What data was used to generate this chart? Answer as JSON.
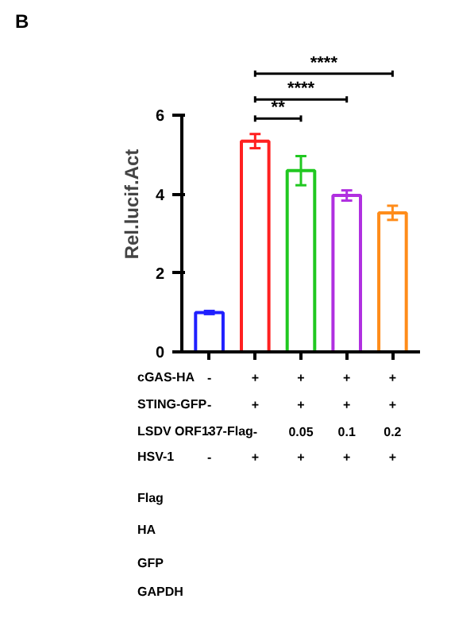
{
  "chart_data": {
    "type": "bar",
    "categories": [
      null,
      null,
      null,
      null,
      null
    ],
    "tick_labels": "y",
    "ylim": [
      0,
      6
    ],
    "yticks": [
      0,
      2,
      4,
      6
    ],
    "ylabel": "Rel.lucif.Act",
    "grid": false,
    "series": [
      {
        "colors": [
          "#2020ff",
          "#ff2020",
          "#20c820",
          "#b030e0",
          "#ff8c1a"
        ],
        "values": [
          1.0,
          5.35,
          4.6,
          3.97,
          3.53
        ],
        "errors": [
          0.04,
          0.18,
          0.37,
          0.13,
          0.18
        ]
      }
    ],
    "annotations": [
      "B",
      "**",
      "****",
      "****",
      "cGAS-HA",
      "-",
      "+",
      "+",
      "+",
      "+",
      "STING-GFP",
      "-",
      "+",
      "+",
      "+",
      "+",
      "LSDV ORF137-Flag",
      "-",
      "-",
      "0.05",
      "0.1",
      "0.2",
      "HSV-1",
      "-",
      "+",
      "+",
      "+",
      "+",
      "Flag",
      "HA",
      "GFP",
      "GAPDH"
    ]
  }
}
